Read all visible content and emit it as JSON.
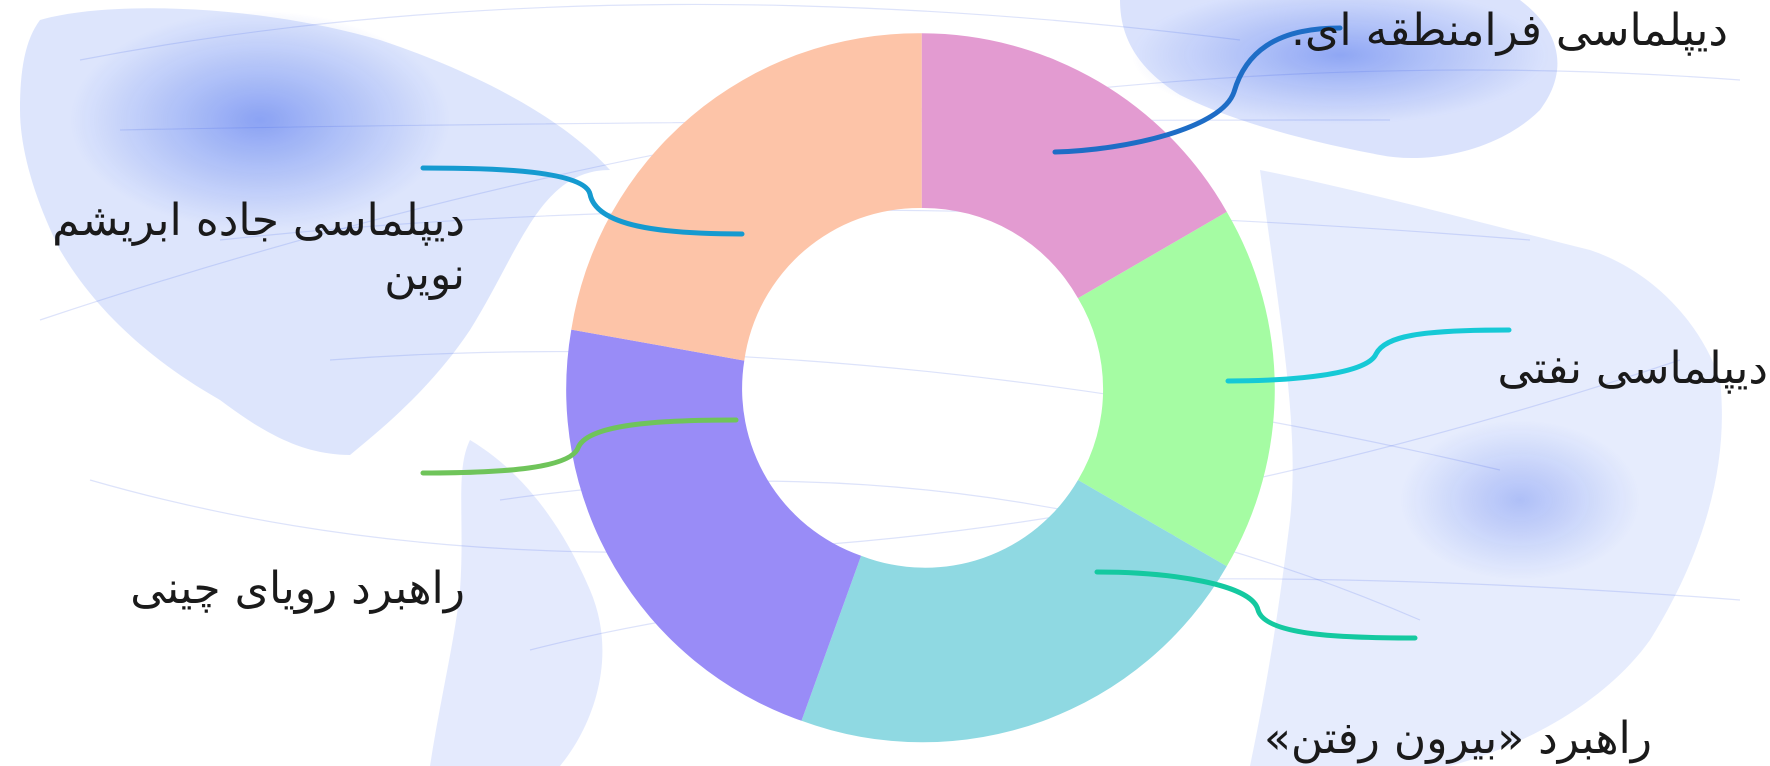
{
  "labels": {
    "top_right": "دیپلماسی فرامنطقه ای.",
    "left_top": "دیپلماسی جاده ابریشم نوین",
    "right_mid": "دیپلماسی نفتی",
    "left_bottom": "راهبرد رویای چینی",
    "bottom_right": "راهبرد «بیرون رفتن»"
  },
  "colors": {
    "background_map": "#1f4fe6",
    "segment_pink": "#e39bd1",
    "segment_green": "#a5fca3",
    "segment_cyan": "#8fd9e2",
    "segment_purple": "#998cf7",
    "segment_peach": "#fdc4a8",
    "connector_blue": "#1e6dc6",
    "connector_sky": "#159ad0",
    "connector_aqua": "#16c9d6",
    "connector_teal": "#14c9a0",
    "connector_green": "#6fc45a"
  },
  "donut": {
    "segments": [
      {
        "id": "pink",
        "share": 18
      },
      {
        "id": "green",
        "share": 18
      },
      {
        "id": "cyan",
        "share": 25
      },
      {
        "id": "purple",
        "share": 21
      },
      {
        "id": "peach",
        "share": 18
      }
    ]
  },
  "map_icons": [
    "world-network-map"
  ]
}
